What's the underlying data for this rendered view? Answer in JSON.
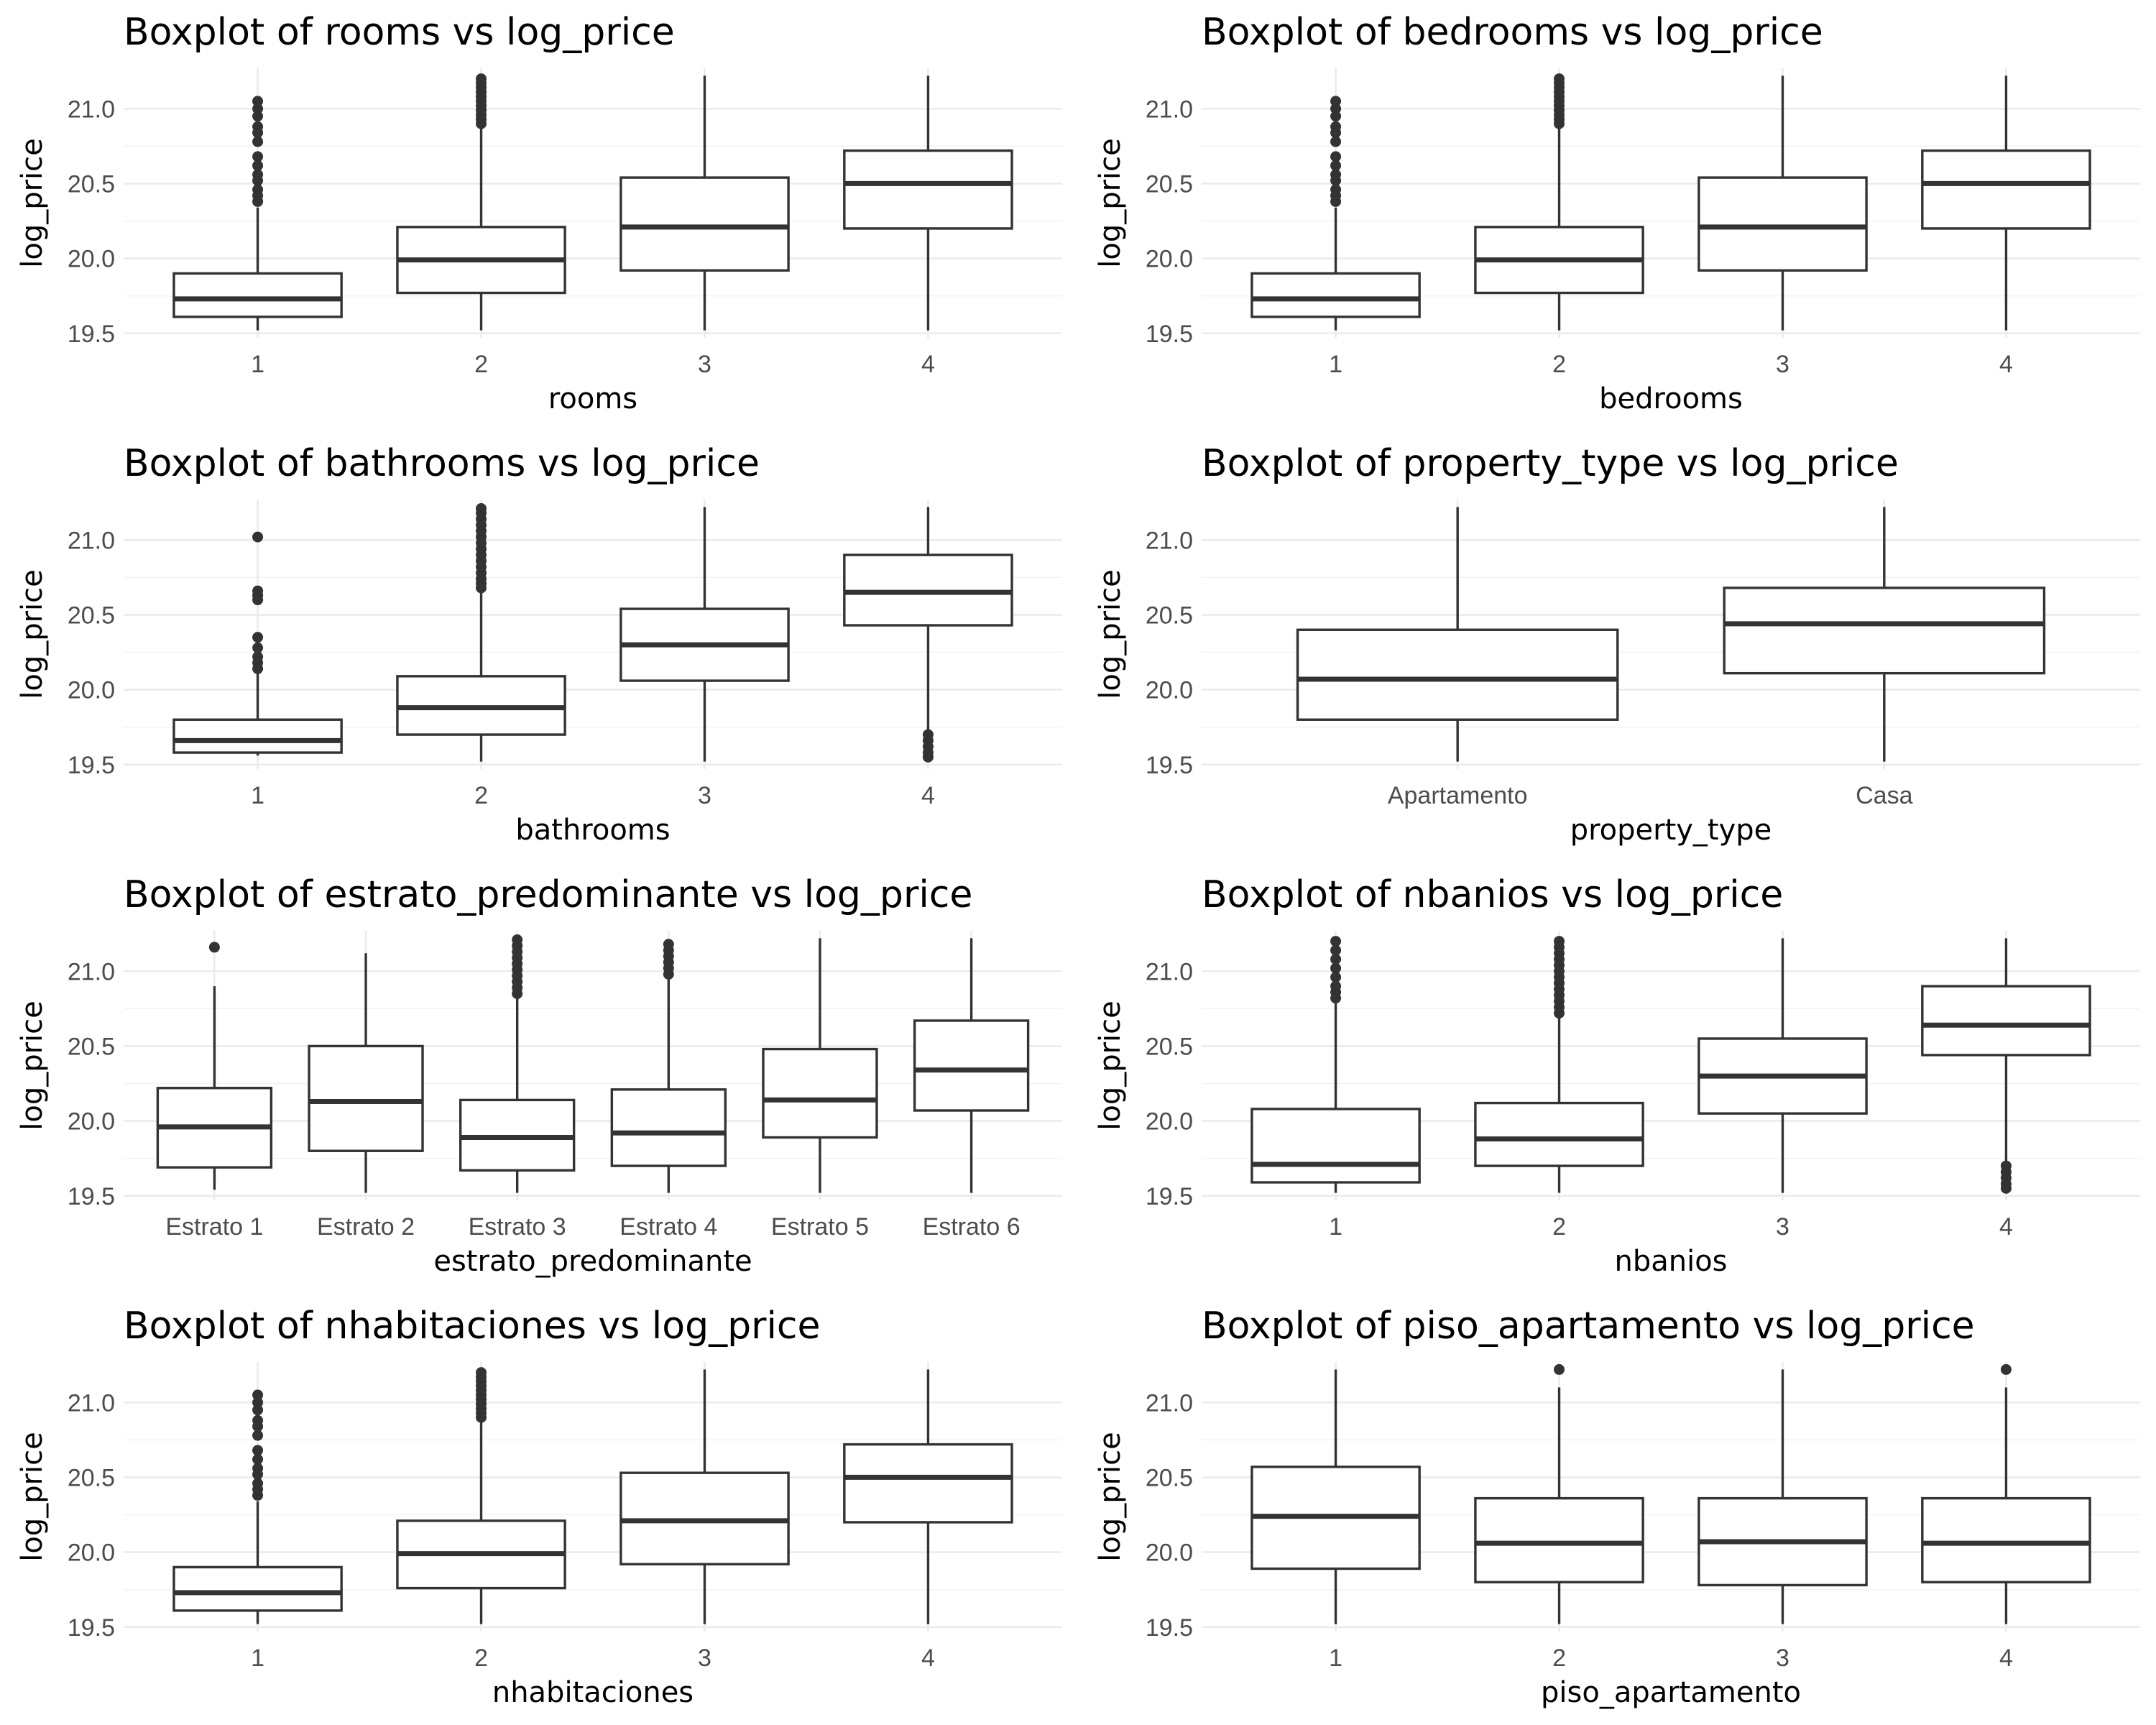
{
  "chart_data": [
    {
      "type": "boxplot",
      "title": "Boxplot of rooms vs log_price",
      "xlabel": "rooms",
      "ylabel": "log_price",
      "ylim": [
        19.47,
        21.27
      ],
      "yticks": [
        "19.5",
        "20.0",
        "20.5",
        "21.0"
      ],
      "categories": [
        "1",
        "2",
        "3",
        "4"
      ],
      "boxes": [
        {
          "lower": 19.52,
          "q1": 19.61,
          "median": 19.73,
          "q3": 19.9,
          "upper": 20.34,
          "outliers": [
            20.38,
            20.42,
            20.46,
            20.52,
            20.56,
            20.62,
            20.68,
            20.78,
            20.84,
            20.88,
            20.95,
            21.0,
            21.05
          ]
        },
        {
          "lower": 19.52,
          "q1": 19.77,
          "median": 19.99,
          "q3": 20.21,
          "upper": 20.88,
          "outliers": [
            20.9,
            20.93,
            20.96,
            20.99,
            21.02,
            21.05,
            21.08,
            21.11,
            21.14,
            21.17,
            21.2
          ]
        },
        {
          "lower": 19.52,
          "q1": 19.92,
          "median": 20.21,
          "q3": 20.54,
          "upper": 21.22,
          "outliers": []
        },
        {
          "lower": 19.52,
          "q1": 20.2,
          "median": 20.5,
          "q3": 20.72,
          "upper": 21.22,
          "outliers": []
        }
      ]
    },
    {
      "type": "boxplot",
      "title": "Boxplot of bedrooms vs log_price",
      "xlabel": "bedrooms",
      "ylabel": "log_price",
      "ylim": [
        19.47,
        21.27
      ],
      "yticks": [
        "19.5",
        "20.0",
        "20.5",
        "21.0"
      ],
      "categories": [
        "1",
        "2",
        "3",
        "4"
      ],
      "boxes": [
        {
          "lower": 19.52,
          "q1": 19.61,
          "median": 19.73,
          "q3": 19.9,
          "upper": 20.34,
          "outliers": [
            20.38,
            20.42,
            20.46,
            20.52,
            20.56,
            20.62,
            20.68,
            20.78,
            20.84,
            20.88,
            20.95,
            21.0,
            21.05
          ]
        },
        {
          "lower": 19.52,
          "q1": 19.77,
          "median": 19.99,
          "q3": 20.21,
          "upper": 20.88,
          "outliers": [
            20.9,
            20.93,
            20.96,
            20.99,
            21.02,
            21.05,
            21.08,
            21.11,
            21.14,
            21.17,
            21.2
          ]
        },
        {
          "lower": 19.52,
          "q1": 19.92,
          "median": 20.21,
          "q3": 20.54,
          "upper": 21.22,
          "outliers": []
        },
        {
          "lower": 19.52,
          "q1": 20.2,
          "median": 20.5,
          "q3": 20.72,
          "upper": 21.22,
          "outliers": []
        }
      ]
    },
    {
      "type": "boxplot",
      "title": "Boxplot of bathrooms vs log_price",
      "xlabel": "bathrooms",
      "ylabel": "log_price",
      "ylim": [
        19.47,
        21.27
      ],
      "yticks": [
        "19.5",
        "20.0",
        "20.5",
        "21.0"
      ],
      "categories": [
        "1",
        "2",
        "3",
        "4"
      ],
      "boxes": [
        {
          "lower": 19.56,
          "q1": 19.58,
          "median": 19.66,
          "q3": 19.8,
          "upper": 20.12,
          "outliers": [
            20.14,
            20.18,
            20.22,
            20.28,
            20.35,
            20.6,
            20.63,
            20.66,
            21.02
          ]
        },
        {
          "lower": 19.52,
          "q1": 19.7,
          "median": 19.88,
          "q3": 20.09,
          "upper": 20.66,
          "outliers": [
            20.68,
            20.71,
            20.74,
            20.78,
            20.82,
            20.86,
            20.9,
            20.94,
            20.98,
            21.02,
            21.06,
            21.1,
            21.14,
            21.18,
            21.21
          ]
        },
        {
          "lower": 19.52,
          "q1": 20.06,
          "median": 20.3,
          "q3": 20.54,
          "upper": 21.22,
          "outliers": []
        },
        {
          "lower": 19.72,
          "q1": 20.43,
          "median": 20.65,
          "q3": 20.9,
          "upper": 21.22,
          "outliers": [
            19.55,
            19.58,
            19.62,
            19.66,
            19.7
          ]
        }
      ]
    },
    {
      "type": "boxplot",
      "title": "Boxplot of property_type vs log_price",
      "xlabel": "property_type",
      "ylabel": "log_price",
      "ylim": [
        19.47,
        21.27
      ],
      "yticks": [
        "19.5",
        "20.0",
        "20.5",
        "21.0"
      ],
      "categories": [
        "Apartamento",
        "Casa"
      ],
      "boxes": [
        {
          "lower": 19.52,
          "q1": 19.8,
          "median": 20.07,
          "q3": 20.4,
          "upper": 21.22,
          "outliers": []
        },
        {
          "lower": 19.52,
          "q1": 20.11,
          "median": 20.44,
          "q3": 20.68,
          "upper": 21.22,
          "outliers": []
        }
      ]
    },
    {
      "type": "boxplot",
      "title": "Boxplot of estrato_predominante vs log_price",
      "xlabel": "estrato_predominante",
      "ylabel": "log_price",
      "ylim": [
        19.47,
        21.27
      ],
      "yticks": [
        "19.5",
        "20.0",
        "20.5",
        "21.0"
      ],
      "categories": [
        "Estrato 1",
        "Estrato 2",
        "Estrato 3",
        "Estrato 4",
        "Estrato 5",
        "Estrato 6"
      ],
      "boxes": [
        {
          "lower": 19.54,
          "q1": 19.69,
          "median": 19.96,
          "q3": 20.22,
          "upper": 20.9,
          "outliers": [
            21.16
          ]
        },
        {
          "lower": 19.52,
          "q1": 19.8,
          "median": 20.13,
          "q3": 20.5,
          "upper": 21.12,
          "outliers": []
        },
        {
          "lower": 19.52,
          "q1": 19.67,
          "median": 19.89,
          "q3": 20.14,
          "upper": 20.82,
          "outliers": [
            20.85,
            20.89,
            20.93,
            20.97,
            21.01,
            21.05,
            21.09,
            21.13,
            21.17,
            21.21
          ]
        },
        {
          "lower": 19.52,
          "q1": 19.7,
          "median": 19.92,
          "q3": 20.21,
          "upper": 20.96,
          "outliers": [
            20.98,
            21.02,
            21.06,
            21.1,
            21.14,
            21.18
          ]
        },
        {
          "lower": 19.52,
          "q1": 19.89,
          "median": 20.14,
          "q3": 20.48,
          "upper": 21.22,
          "outliers": []
        },
        {
          "lower": 19.52,
          "q1": 20.07,
          "median": 20.34,
          "q3": 20.67,
          "upper": 21.22,
          "outliers": []
        }
      ]
    },
    {
      "type": "boxplot",
      "title": "Boxplot of nbanios vs log_price",
      "xlabel": "nbanios",
      "ylabel": "log_price",
      "ylim": [
        19.47,
        21.27
      ],
      "yticks": [
        "19.5",
        "20.0",
        "20.5",
        "21.0"
      ],
      "categories": [
        "1",
        "2",
        "3",
        "4"
      ],
      "boxes": [
        {
          "lower": 19.52,
          "q1": 19.59,
          "median": 19.71,
          "q3": 20.08,
          "upper": 20.8,
          "outliers": [
            20.82,
            20.86,
            20.9,
            20.96,
            21.02,
            21.08,
            21.14,
            21.2
          ]
        },
        {
          "lower": 19.52,
          "q1": 19.7,
          "median": 19.88,
          "q3": 20.12,
          "upper": 20.7,
          "outliers": [
            20.72,
            20.76,
            20.8,
            20.84,
            20.88,
            20.92,
            20.96,
            21.0,
            21.04,
            21.08,
            21.12,
            21.16,
            21.2
          ]
        },
        {
          "lower": 19.52,
          "q1": 20.05,
          "median": 20.3,
          "q3": 20.55,
          "upper": 21.22,
          "outliers": []
        },
        {
          "lower": 19.72,
          "q1": 20.44,
          "median": 20.64,
          "q3": 20.9,
          "upper": 21.22,
          "outliers": [
            19.55,
            19.58,
            19.62,
            19.66,
            19.7
          ]
        }
      ]
    },
    {
      "type": "boxplot",
      "title": "Boxplot of nhabitaciones vs log_price",
      "xlabel": "nhabitaciones",
      "ylabel": "log_price",
      "ylim": [
        19.47,
        21.27
      ],
      "yticks": [
        "19.5",
        "20.0",
        "20.5",
        "21.0"
      ],
      "categories": [
        "1",
        "2",
        "3",
        "4"
      ],
      "boxes": [
        {
          "lower": 19.52,
          "q1": 19.61,
          "median": 19.73,
          "q3": 19.9,
          "upper": 20.34,
          "outliers": [
            20.38,
            20.42,
            20.46,
            20.52,
            20.56,
            20.62,
            20.68,
            20.78,
            20.84,
            20.88,
            20.95,
            21.0,
            21.05
          ]
        },
        {
          "lower": 19.52,
          "q1": 19.76,
          "median": 19.99,
          "q3": 20.21,
          "upper": 20.88,
          "outliers": [
            20.9,
            20.93,
            20.96,
            20.99,
            21.02,
            21.05,
            21.08,
            21.11,
            21.14,
            21.17,
            21.2
          ]
        },
        {
          "lower": 19.52,
          "q1": 19.92,
          "median": 20.21,
          "q3": 20.53,
          "upper": 21.22,
          "outliers": []
        },
        {
          "lower": 19.52,
          "q1": 20.2,
          "median": 20.5,
          "q3": 20.72,
          "upper": 21.22,
          "outliers": []
        }
      ]
    },
    {
      "type": "boxplot",
      "title": "Boxplot of piso_apartamento vs log_price",
      "xlabel": "piso_apartamento",
      "ylabel": "log_price",
      "ylim": [
        19.47,
        21.27
      ],
      "yticks": [
        "19.5",
        "20.0",
        "20.5",
        "21.0"
      ],
      "categories": [
        "1",
        "2",
        "3",
        "4"
      ],
      "boxes": [
        {
          "lower": 19.52,
          "q1": 19.89,
          "median": 20.24,
          "q3": 20.57,
          "upper": 21.22,
          "outliers": []
        },
        {
          "lower": 19.52,
          "q1": 19.8,
          "median": 20.06,
          "q3": 20.36,
          "upper": 21.1,
          "outliers": [
            21.22
          ]
        },
        {
          "lower": 19.52,
          "q1": 19.78,
          "median": 20.07,
          "q3": 20.36,
          "upper": 21.22,
          "outliers": []
        },
        {
          "lower": 19.52,
          "q1": 19.8,
          "median": 20.06,
          "q3": 20.36,
          "upper": 21.1,
          "outliers": [
            21.22
          ]
        }
      ]
    }
  ]
}
